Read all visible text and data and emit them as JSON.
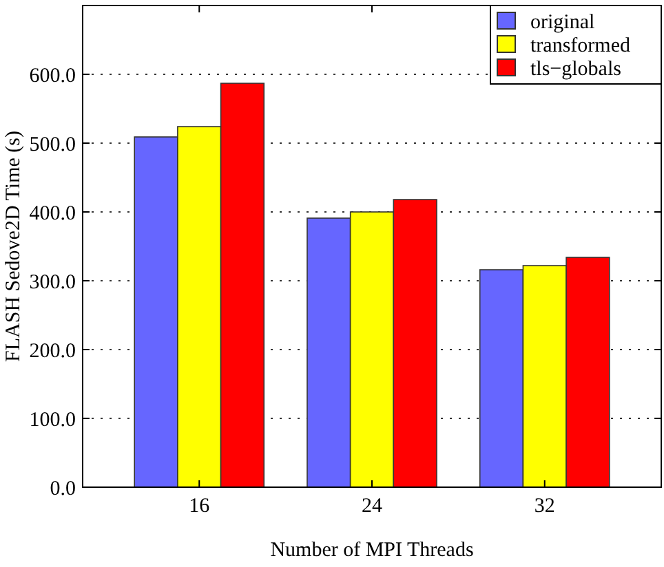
{
  "chart_data": {
    "type": "bar",
    "xlabel": "Number of MPI Threads",
    "ylabel": "FLASH Sedove2D Time (s)",
    "categories": [
      "16",
      "24",
      "32"
    ],
    "series": [
      {
        "name": "original",
        "color": "#6666ff",
        "values": [
          509,
          391,
          316
        ]
      },
      {
        "name": "transformed",
        "color": "#ffff00",
        "values": [
          524,
          400,
          322
        ]
      },
      {
        "name": "tls−globals",
        "color": "#ff0000",
        "values": [
          587,
          418,
          334
        ]
      }
    ],
    "ylim": [
      0,
      700
    ],
    "yticks": [
      {
        "value": 0,
        "label": "0.0"
      },
      {
        "value": 100,
        "label": "100.0"
      },
      {
        "value": 200,
        "label": "200.0"
      },
      {
        "value": 300,
        "label": "300.0"
      },
      {
        "value": 400,
        "label": "400.0"
      },
      {
        "value": 500,
        "label": "500.0"
      },
      {
        "value": 600,
        "label": "600.0"
      }
    ],
    "grid": "y",
    "legend": "top right"
  }
}
